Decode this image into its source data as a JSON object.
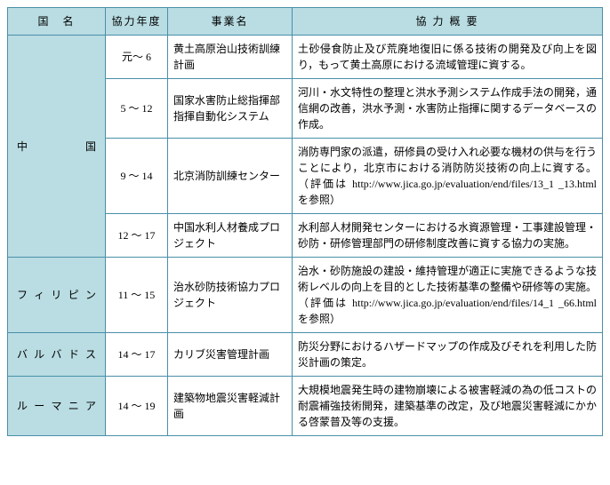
{
  "headers": {
    "country": "国　名",
    "year": "協力年度",
    "project": "事業名",
    "summary": "協 力 概 要"
  },
  "countries": [
    {
      "name": "中国",
      "spaced": "中　　　国",
      "rows": [
        {
          "year": "元～ 6",
          "project": "黄土高原治山技術訓練計画",
          "summary": "土砂侵食防止及び荒廃地復旧に係る技術の開発及び向上を図り，もって黄土高原における流域管理に資する。"
        },
        {
          "year": "5 ～ 12",
          "project": "国家水害防止総指揮部指揮自動化システム",
          "summary": "河川・水文特性の整理と洪水予測システム作成手法の開発，通信網の改善，洪水予測・水害防止指揮に関するデータベースの作成。"
        },
        {
          "year": "9 ～ 14",
          "project": "北京消防訓練センター",
          "summary": "消防専門家の派遣，研修員の受け入れ必要な機材の供与を行うことにより，北京市における消防防災技術の向上に資する。（評価は http://www.jica.go.jp/evaluation/end/files/13_1 _13.html を参照）"
        },
        {
          "year": "12 ～ 17",
          "project": "中国水利人材養成プロジェクト",
          "summary": "水利部人材開発センターにおける水資源管理・工事建設管理・砂防・研修管理部門の研修制度改善に資する協力の実施。"
        }
      ]
    },
    {
      "name": "フィリピン",
      "spaced": "フィリピン",
      "rows": [
        {
          "year": "11 ～ 15",
          "project": "治水砂防技術協力プロジェクト",
          "summary": "治水・砂防施設の建設・維持管理が適正に実施できるような技術レベルの向上を目的とした技術基準の整備や研修等の実施。（評価は http://www.jica.go.jp/evaluation/end/files/14_1 _66.html を参照）"
        }
      ]
    },
    {
      "name": "バルバドス",
      "spaced": "バルバドス",
      "rows": [
        {
          "year": "14 ～ 17",
          "project": "カリブ災害管理計画",
          "summary": "防災分野におけるハザードマップの作成及びそれを利用した防災計画の策定。"
        }
      ]
    },
    {
      "name": "ルーマニア",
      "spaced": "ルーマニア",
      "rows": [
        {
          "year": "14 ～ 19",
          "project": "建築物地震災害軽減計画",
          "summary": "大規模地震発生時の建物崩壊による被害軽減の為の低コストの耐震補強技術開発，建築基準の改定，及び地震災害軽減にかかる啓蒙普及等の支援。"
        }
      ]
    }
  ]
}
